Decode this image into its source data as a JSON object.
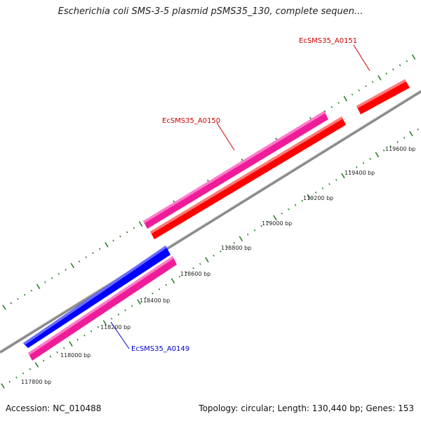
{
  "title": "Escherichia coli SMS-3-5 plasmid pSMS35_130, complete sequen...",
  "footer": {
    "accession": "Accession: NC_010488",
    "stats": "Topology: circular; Length: 130,440 bp; Genes: 153"
  },
  "colors": {
    "backbone": "#8a8a8a",
    "tick": "#1f7a1f",
    "gene_red": "#ff0000",
    "gene_pink": "#ee1c99",
    "gene_blue": "#0000ff",
    "label_red": "#cc0000",
    "label_blue": "#0000cc"
  },
  "scale_labels": [
    "117800 bp",
    "118000 bp",
    "118200 bp",
    "118400 bp",
    "118600 bp",
    "118800 bp",
    "119000 bp",
    "119200 bp",
    "119400 bp",
    "119600 bp"
  ],
  "genes": [
    {
      "id": "EcSMS35_A0149",
      "color": "pink",
      "track": "inner",
      "label": "EcSMS35_A0149",
      "label_color": "blue"
    },
    {
      "id": "blue-feature",
      "color": "blue",
      "track": "outer"
    },
    {
      "id": "EcSMS35_A0150",
      "color": "pink",
      "track": "outer",
      "label": "EcSMS35_A0150",
      "label_color": "red"
    },
    {
      "id": "red-feature",
      "color": "red",
      "track": "inner"
    },
    {
      "id": "EcSMS35_A0151",
      "color": "red",
      "track": "inner",
      "label": "EcSMS35_A0151",
      "label_color": "red"
    }
  ]
}
